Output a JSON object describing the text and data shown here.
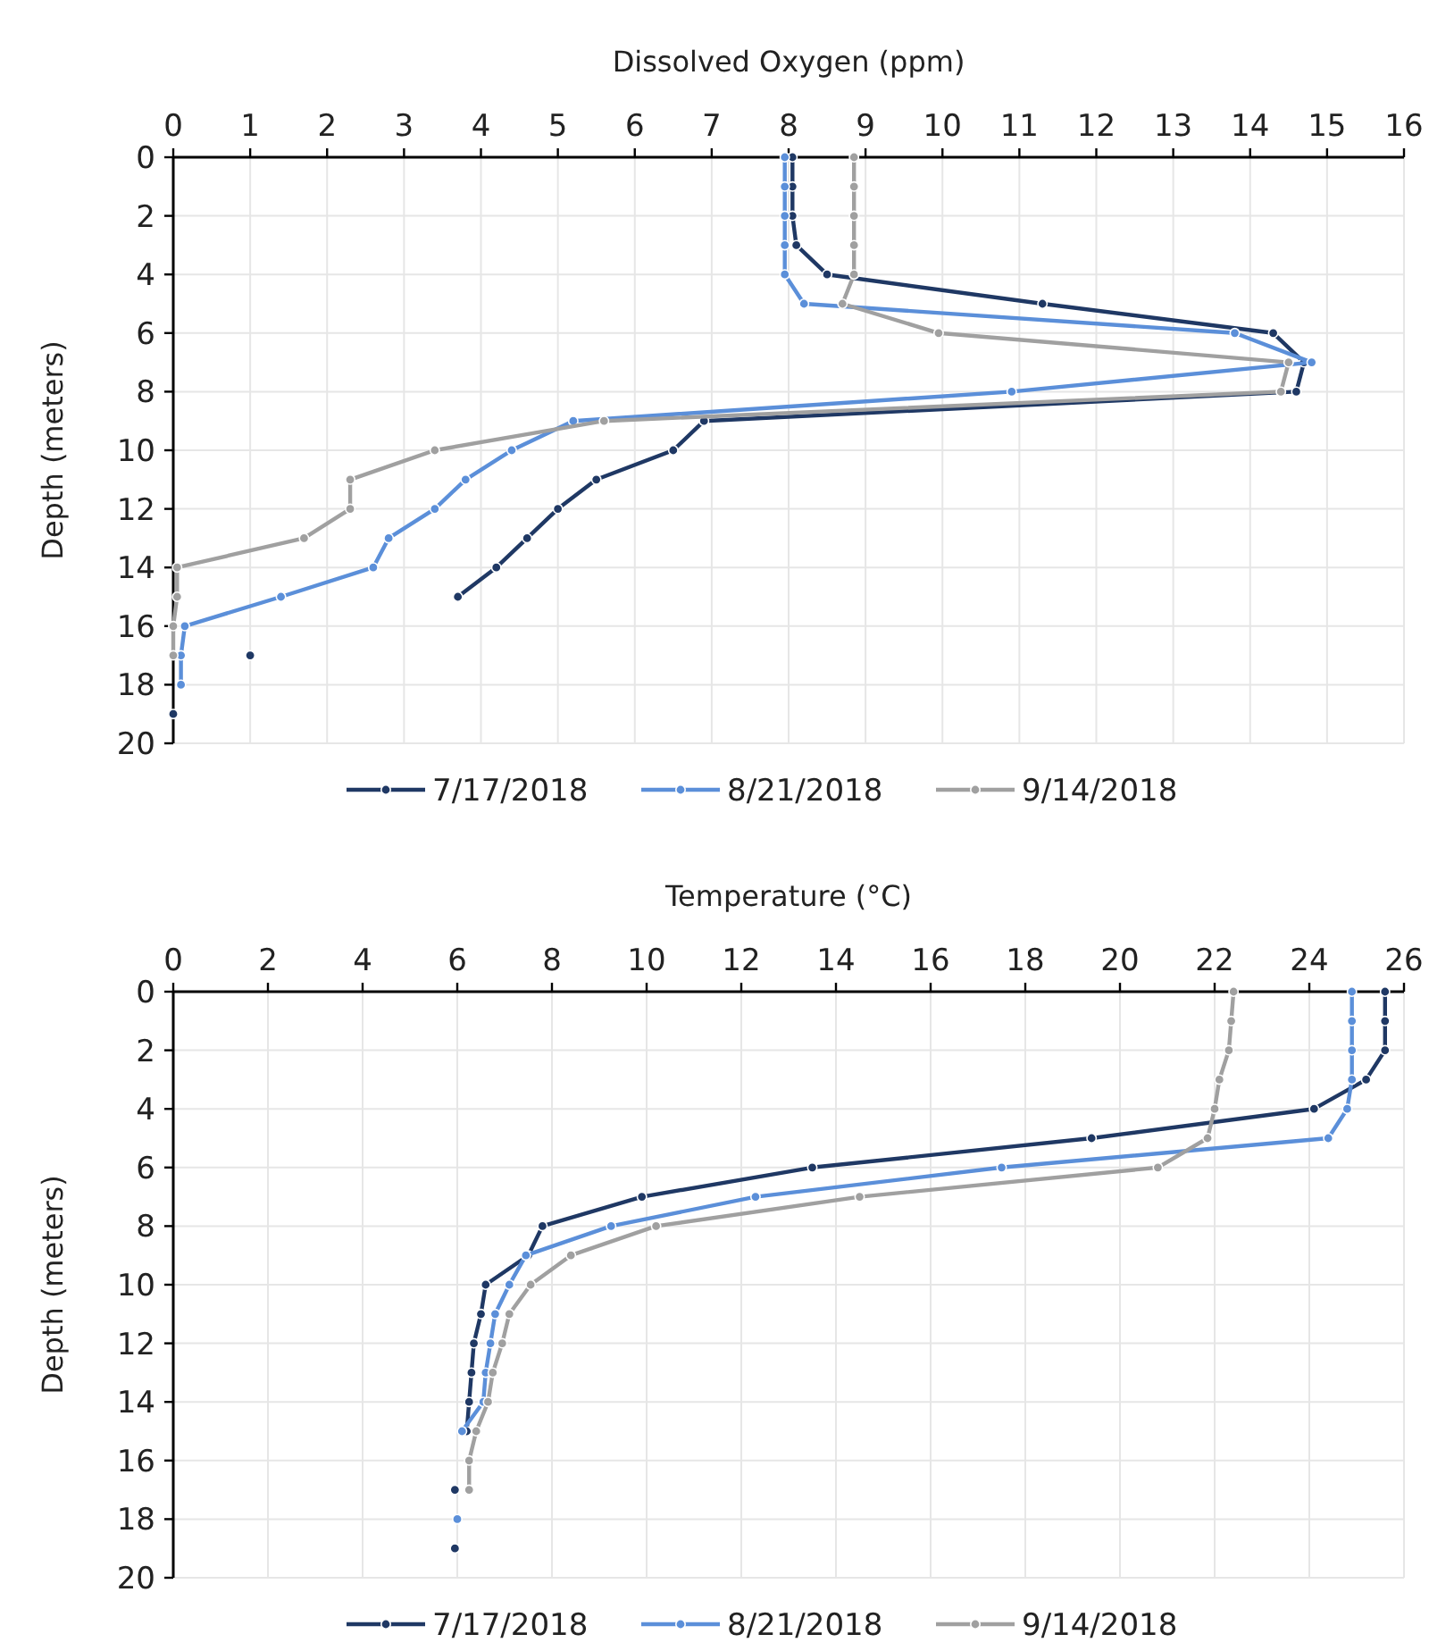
{
  "chart_data": [
    {
      "type": "line",
      "xlabel": "Dissolved Oxygen (ppm)",
      "ylabel": "Depth (meters)",
      "xlim": [
        0,
        16
      ],
      "xticks": [
        0,
        1,
        2,
        3,
        4,
        5,
        6,
        7,
        8,
        9,
        10,
        11,
        12,
        13,
        14,
        15,
        16
      ],
      "ylim": [
        20,
        0
      ],
      "yticks": [
        0,
        2,
        4,
        6,
        8,
        10,
        12,
        14,
        16,
        18,
        20
      ],
      "grid": true,
      "legend": "bottom",
      "marker": "circle",
      "line_style": "solid",
      "series": [
        {
          "name": "7/17/2018",
          "color": "#1f3864",
          "x": [
            8.05,
            8.05,
            8.05,
            8.1,
            8.5,
            11.3,
            14.3,
            14.7,
            14.6,
            6.9,
            6.5,
            5.5,
            5.0,
            4.6,
            4.2,
            3.7,
            null,
            1.0,
            null,
            0.0
          ],
          "values": [
            0,
            1,
            2,
            3,
            4,
            5,
            6,
            7,
            8,
            9,
            10,
            11,
            12,
            13,
            14,
            15,
            null,
            17,
            null,
            19
          ]
        },
        {
          "name": "8/21/2018",
          "color": "#5b8fd9",
          "x": [
            7.95,
            7.95,
            7.95,
            7.95,
            7.95,
            8.2,
            13.8,
            14.8,
            10.9,
            5.2,
            4.4,
            3.8,
            3.4,
            2.8,
            2.6,
            1.4,
            0.15,
            0.1,
            0.1
          ],
          "values": [
            0,
            1,
            2,
            3,
            4,
            5,
            6,
            7,
            8,
            9,
            10,
            11,
            12,
            13,
            14,
            15,
            16,
            17,
            18
          ]
        },
        {
          "name": "9/14/2018",
          "color": "#a0a0a0",
          "x": [
            8.85,
            8.85,
            8.85,
            8.85,
            8.85,
            8.7,
            9.95,
            14.5,
            14.4,
            5.6,
            3.4,
            2.3,
            2.3,
            1.7,
            0.05,
            0.05,
            0.0,
            0.0
          ],
          "values": [
            0,
            1,
            2,
            3,
            4,
            5,
            6,
            7,
            8,
            9,
            10,
            11,
            12,
            13,
            14,
            15,
            16,
            17
          ]
        }
      ]
    },
    {
      "type": "line",
      "xlabel": "Temperature (°C)",
      "ylabel": "Depth (meters)",
      "xlim": [
        0,
        26
      ],
      "xticks": [
        0,
        2,
        4,
        6,
        8,
        10,
        12,
        14,
        16,
        18,
        20,
        22,
        24,
        26
      ],
      "ylim": [
        20,
        0
      ],
      "yticks": [
        0,
        2,
        4,
        6,
        8,
        10,
        12,
        14,
        16,
        18,
        20
      ],
      "grid": true,
      "legend": "bottom",
      "marker": "circle",
      "line_style": "solid",
      "series": [
        {
          "name": "7/17/2018",
          "color": "#1f3864",
          "x": [
            25.6,
            25.6,
            25.6,
            25.2,
            24.1,
            19.4,
            13.5,
            9.9,
            7.8,
            7.5,
            6.6,
            6.5,
            6.35,
            6.3,
            6.25,
            6.2,
            null,
            5.95,
            null,
            5.95
          ],
          "values": [
            0,
            1,
            2,
            3,
            4,
            5,
            6,
            7,
            8,
            9,
            10,
            11,
            12,
            13,
            14,
            15,
            null,
            17,
            null,
            19
          ]
        },
        {
          "name": "8/21/2018",
          "color": "#5b8fd9",
          "x": [
            24.9,
            24.9,
            24.9,
            24.9,
            24.8,
            24.4,
            17.5,
            12.3,
            9.25,
            7.45,
            7.1,
            6.8,
            6.7,
            6.6,
            6.55,
            6.1,
            null,
            null,
            6.0
          ],
          "values": [
            0,
            1,
            2,
            3,
            4,
            5,
            6,
            7,
            8,
            9,
            10,
            11,
            12,
            13,
            14,
            15,
            null,
            null,
            18
          ]
        },
        {
          "name": "9/14/2018",
          "color": "#a0a0a0",
          "x": [
            22.4,
            22.35,
            22.3,
            22.1,
            22.0,
            21.85,
            20.8,
            14.5,
            10.2,
            8.4,
            7.55,
            7.1,
            6.95,
            6.75,
            6.65,
            6.4,
            6.25,
            6.25
          ],
          "values": [
            0,
            1,
            2,
            3,
            4,
            5,
            6,
            7,
            8,
            9,
            10,
            11,
            12,
            13,
            14,
            15,
            16,
            17
          ]
        }
      ]
    }
  ]
}
